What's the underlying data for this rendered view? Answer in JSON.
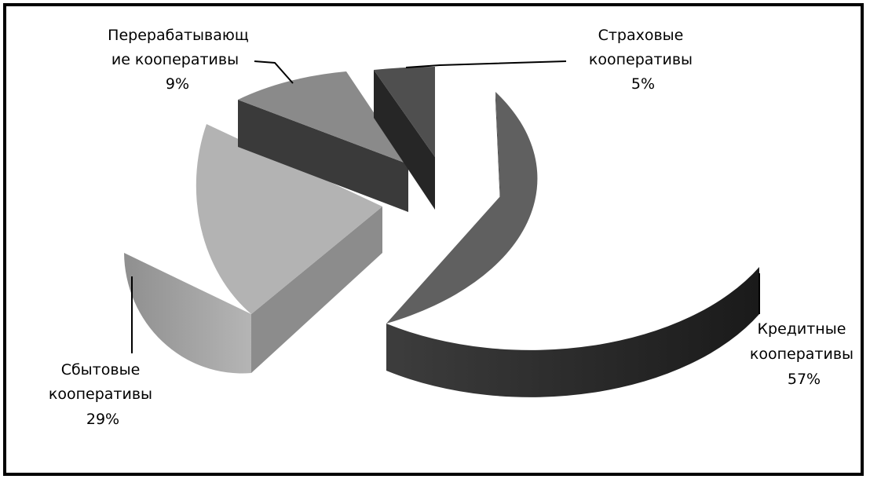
{
  "chart_data": {
    "type": "pie",
    "style": "3d-exploded",
    "slices": [
      {
        "label_lines": [
          "Кредитные",
          "кооперативы"
        ],
        "percent_text": "57%",
        "value": 57,
        "color": "#606060"
      },
      {
        "label_lines": [
          "Сбытовые",
          "кооперативы"
        ],
        "percent_text": "29%",
        "value": 29,
        "color": "#b3b3b3"
      },
      {
        "label_lines": [
          "Перерабатывающ",
          "ие кооперативы"
        ],
        "percent_text": "9%",
        "value": 9,
        "color": "#8a8a8a"
      },
      {
        "label_lines": [
          "Страховые",
          "кооперативы"
        ],
        "percent_text": "5%",
        "value": 5,
        "color": "#4f4f4f"
      }
    ],
    "legend": "none",
    "labels_with_leader_lines": true
  }
}
